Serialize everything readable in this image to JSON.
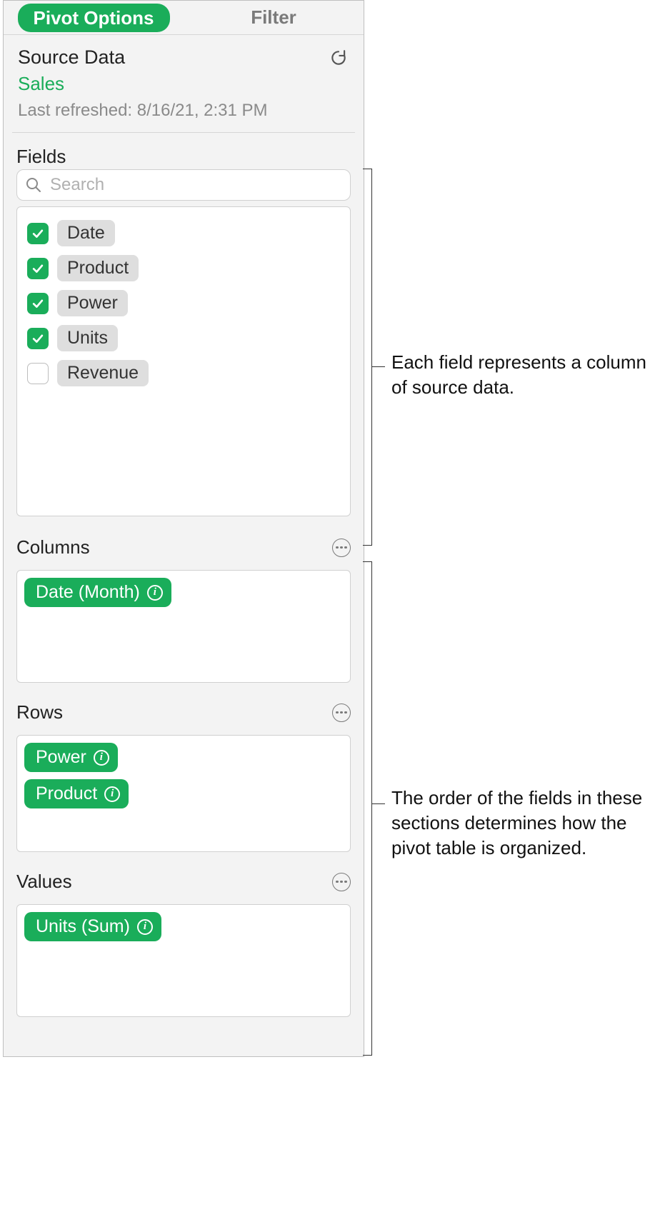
{
  "colors": {
    "accent": "#1aad5a",
    "pane_bg": "#f3f3f3",
    "border": "#d0d0d0",
    "muted_text": "#8a8a8a",
    "chip_bg": "#dedede"
  },
  "tabs": {
    "pivot_options": "Pivot Options",
    "filter": "Filter"
  },
  "source": {
    "heading": "Source Data",
    "name": "Sales",
    "last_refreshed": "Last refreshed: 8/16/21, 2:31 PM"
  },
  "search": {
    "placeholder": "Search"
  },
  "fields": {
    "heading": "Fields",
    "items": [
      {
        "label": "Date",
        "checked": true
      },
      {
        "label": "Product",
        "checked": true
      },
      {
        "label": "Power",
        "checked": true
      },
      {
        "label": "Units",
        "checked": true
      },
      {
        "label": "Revenue",
        "checked": false
      }
    ]
  },
  "sections": {
    "columns": {
      "heading": "Columns",
      "items": [
        "Date (Month)"
      ]
    },
    "rows": {
      "heading": "Rows",
      "items": [
        "Power",
        "Product"
      ]
    },
    "values": {
      "heading": "Values",
      "items": [
        "Units (Sum)"
      ]
    }
  },
  "callouts": {
    "fields": "Each field represents a column of source data.",
    "order": "The order of the fields in these sections determines how the pivot table is organized."
  }
}
